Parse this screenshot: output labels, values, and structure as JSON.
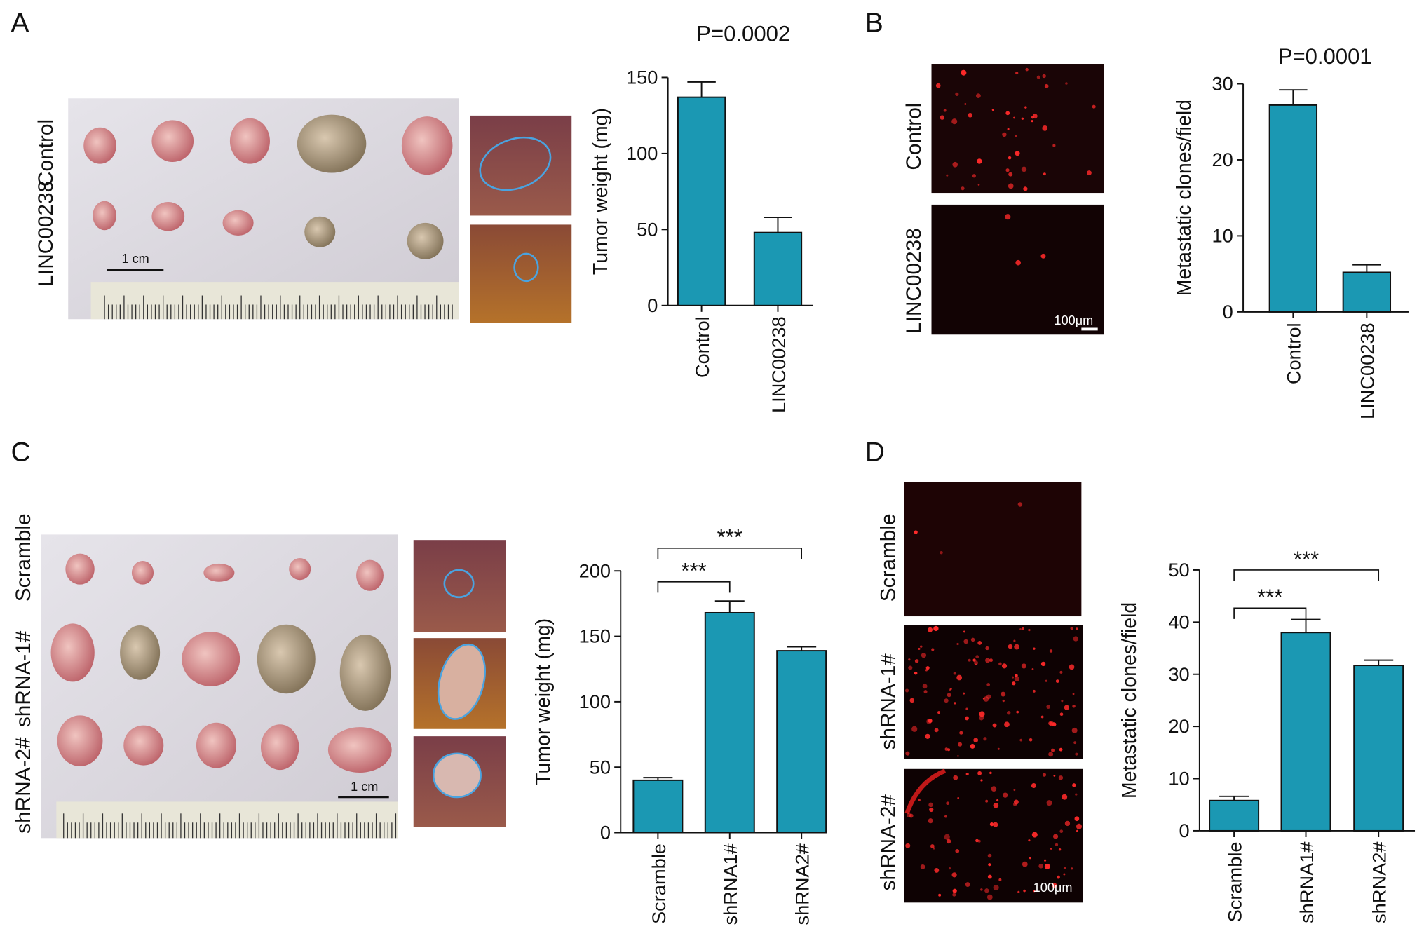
{
  "chart_data": [
    {
      "type": "bar",
      "title": "P=0.0002",
      "ylabel": "Tumor weight (mg)",
      "categories": [
        "Control",
        "LINC00238"
      ],
      "values": [
        137,
        48
      ],
      "errors": [
        10,
        10
      ],
      "color": "#1b98b3",
      "ylim": [
        0,
        150
      ],
      "yticks": [
        0,
        50,
        100,
        150
      ]
    },
    {
      "type": "bar",
      "title": "P=0.0001",
      "ylabel": "Metastatic clones/field",
      "categories": [
        "Control",
        "LINC00238"
      ],
      "values": [
        27.2,
        5.2
      ],
      "errors": [
        2,
        1
      ],
      "color": "#1b98b3",
      "ylim": [
        0,
        30
      ],
      "yticks": [
        0,
        10,
        20,
        30
      ]
    },
    {
      "type": "bar",
      "ylabel": "Tumor weight (mg)",
      "categories": [
        "Scramble",
        "shRNA1#",
        "shRNA2#"
      ],
      "values": [
        40,
        168,
        139
      ],
      "errors": [
        2,
        9,
        3
      ],
      "color": "#1b98b3",
      "ylim": [
        0,
        200
      ],
      "yticks": [
        0,
        50,
        100,
        150,
        200
      ],
      "significance": [
        {
          "pair": [
            0,
            1
          ],
          "label": "***"
        },
        {
          "pair": [
            0,
            2
          ],
          "label": "***"
        }
      ]
    },
    {
      "type": "bar",
      "ylabel": "Metastatic clones/field",
      "categories": [
        "Scramble",
        "shRNA1#",
        "shRNA2#"
      ],
      "values": [
        5.8,
        38,
        31.7
      ],
      "errors": [
        0.8,
        2.5,
        1
      ],
      "color": "#1b98b3",
      "ylim": [
        0,
        50
      ],
      "yticks": [
        0,
        10,
        20,
        30,
        40,
        50
      ],
      "significance": [
        {
          "pair": [
            0,
            1
          ],
          "label": "***"
        },
        {
          "pair": [
            0,
            2
          ],
          "label": "***"
        }
      ]
    }
  ],
  "panels": [
    {
      "label": "A",
      "image_labels": [
        "LINC00238",
        "Control"
      ],
      "scale_bar": "1 cm"
    },
    {
      "label": "B",
      "image_labels": [
        "Control",
        "LINC00238"
      ],
      "scale_bar": "100μm"
    },
    {
      "label": "C",
      "image_labels": [
        "shRNA-2#",
        "shRNA-1#",
        "Scramble"
      ],
      "scale_bar": "1 cm"
    },
    {
      "label": "D",
      "image_labels": [
        "Scramble",
        "shRNA-1#",
        "shRNA-2#"
      ],
      "scale_bar": "100μm"
    }
  ]
}
